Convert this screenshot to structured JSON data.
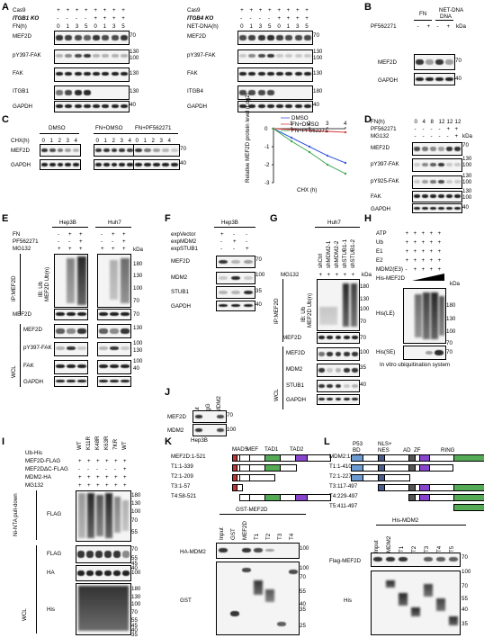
{
  "figure": {
    "panels": [
      "A",
      "B",
      "C",
      "D",
      "E",
      "F",
      "G",
      "H",
      "I",
      "J",
      "K",
      "L"
    ],
    "A": {
      "left": {
        "rows": [
          "Cas9",
          "ITGB1 KO",
          "FN(h)"
        ],
        "cas9": [
          "+",
          "+",
          "+",
          "+",
          "+",
          "+",
          "+",
          "+"
        ],
        "ko": [
          "-",
          "-",
          "-",
          "-",
          "+",
          "+",
          "+",
          "+"
        ],
        "time": [
          "0",
          "1",
          "3",
          "5",
          "0",
          "1",
          "3",
          "5"
        ],
        "blots": [
          "MEF2D",
          "pY397-FAK",
          "FAK",
          "ITGB1",
          "GAPDH"
        ],
        "kda": [
          "70",
          "130",
          "100",
          "130",
          "130",
          "40"
        ]
      },
      "right": {
        "rows": [
          "Cas9",
          "ITGB4 KO",
          "NET-DNA(h)"
        ],
        "cas9": [
          "+",
          "+",
          "+",
          "+",
          "+",
          "+",
          "+",
          "+"
        ],
        "ko": [
          "-",
          "-",
          "-",
          "-",
          "+",
          "+",
          "+",
          "+"
        ],
        "time": [
          "0",
          "1",
          "3",
          "5",
          "0",
          "1",
          "3",
          "5"
        ],
        "blots": [
          "MEF2D",
          "pY397-FAK",
          "FAK",
          "ITGB4",
          "GAPDH"
        ],
        "kda": [
          "70",
          "130",
          "100",
          "130",
          "180",
          "40"
        ]
      }
    },
    "B": {
      "groups": [
        "FN",
        "NET-DNA"
      ],
      "row": "PF562271",
      "signs": [
        "-",
        "+",
        "-",
        "+"
      ],
      "blots": [
        "MEF2D",
        "GAPDH"
      ],
      "kda": [
        "70",
        "40"
      ]
    },
    "C": {
      "conds": [
        "DMSO",
        "FN+DMSO",
        "FN+PF562271"
      ],
      "row": "CHX(h)",
      "time": [
        "0",
        "1",
        "2",
        "3",
        "4"
      ],
      "blots": [
        "MEF2D",
        "GAPDH"
      ],
      "kda": [
        "70",
        "40"
      ],
      "chart_data": {
        "type": "line",
        "ylabel": "Relative MEF2D protein level (Log2)",
        "xlabel": "CHX (h)",
        "x": [
          0,
          1,
          2,
          3,
          4
        ],
        "ylim": [
          -3,
          0
        ],
        "ticks_y": [
          "0",
          "-1",
          "-2",
          "-3"
        ],
        "ticks_x": [
          "1",
          "2",
          "3",
          "4"
        ],
        "series": [
          {
            "name": "DMSO",
            "color": "#3a5bd9",
            "values": [
              0,
              -0.5,
              -1.0,
              -1.5,
              -1.9
            ]
          },
          {
            "name": "FN+DMSO",
            "color": "#d93a3a",
            "values": [
              0,
              -0.05,
              -0.1,
              -0.15,
              -0.2
            ]
          },
          {
            "name": "FN+PF562271",
            "color": "#3aa84a",
            "values": [
              0,
              -0.7,
              -1.3,
              -2.0,
              -2.5
            ]
          }
        ]
      }
    },
    "D": {
      "rows": [
        "FN(h)",
        "PF562271",
        "MG132"
      ],
      "time": [
        "0",
        "4",
        "8",
        "12",
        "12",
        "12"
      ],
      "pf": [
        "-",
        "-",
        "-",
        "-",
        "+",
        "+"
      ],
      "mg": [
        "-",
        "-",
        "-",
        "-",
        "-",
        "+"
      ],
      "blots": [
        "MEF2D",
        "pY397-FAK",
        "pY925-FAK",
        "FAK",
        "GAPDH"
      ],
      "kda": [
        "70",
        "130",
        "100",
        "130",
        "100",
        "130",
        "100",
        "40"
      ]
    },
    "E": {
      "cells": [
        "Hep3B",
        "Huh7"
      ],
      "rows": [
        "FN",
        "PF562271",
        "MG132"
      ],
      "fn": [
        "-",
        "+",
        "+",
        "-",
        "+",
        "+"
      ],
      "pf": [
        "-",
        "-",
        "+",
        "-",
        "-",
        "+"
      ],
      "mg": [
        "+",
        "+",
        "+",
        "+",
        "+",
        "+"
      ],
      "ip": "IP:MEF2D",
      "ib": "IB: Ub",
      "ibsub": "MEF2D Ub(n)",
      "wcl": "WCL",
      "blots": [
        "MEF2D",
        "MEF2D",
        "pY397-FAK",
        "FAK",
        "GAPDH"
      ],
      "kda": [
        "kDa",
        "180",
        "130",
        "100",
        "70",
        "70",
        "130",
        "100",
        "130",
        "100",
        "40"
      ]
    },
    "F": {
      "cell": "Hep3B",
      "rows": [
        "expVector",
        "expMDM2",
        "expSTUB1"
      ],
      "vec": [
        "+",
        "-",
        "-"
      ],
      "mdm": [
        "-",
        "+",
        "-"
      ],
      "stub": [
        "-",
        "-",
        "+"
      ],
      "blots": [
        "MEF2D",
        "MDM2",
        "STUB1",
        "GAPDH"
      ],
      "kda": [
        "70",
        "100",
        "35",
        "40"
      ]
    },
    "G": {
      "cell": "Huh7",
      "cols": [
        "shCtrl",
        "shMDM2-1",
        "shMDM2-2",
        "shSTUB1-1",
        "shSTUB1-2"
      ],
      "row": "MG132",
      "mg": [
        "+",
        "+",
        "+",
        "+",
        "+"
      ],
      "ip": "IP:MEF2D",
      "ib": "IB: Ub",
      "ibsub": "MEF2D Ub(n)",
      "wcl": "WCL",
      "blots": [
        "MEF2D",
        "MEF2D",
        "MDM2",
        "STUB1",
        "GAPDH"
      ],
      "kda": [
        "kDa",
        "180",
        "130",
        "100",
        "70",
        "70",
        "100",
        "35",
        "40"
      ]
    },
    "H": {
      "rows": [
        "ATP",
        "Ub",
        "E1",
        "E2",
        "MDM2(E3)",
        "His-MEF2D"
      ],
      "signs": [
        "+",
        "+",
        "+",
        "+",
        "+"
      ],
      "mdm": [
        "-",
        "+",
        "+",
        "+",
        "+"
      ],
      "blots": [
        "His(LE)",
        "His(SE)"
      ],
      "kda": [
        "kDa",
        "180",
        "130",
        "100",
        "70",
        "70"
      ],
      "caption": "In vitro ubiquitination system"
    },
    "I": {
      "rows": [
        "Ub-His",
        "MEF2D-FLAG",
        "MEF2DΔC-FLAG",
        "MDM2-HA",
        "MG132"
      ],
      "ub": [
        "WT",
        "K11R",
        "K48R",
        "K63R",
        "7KR",
        "WT"
      ],
      "pull": "Ni-NTA pull-down",
      "wcl": "WCL",
      "blots": [
        "FLAG",
        "FLAG",
        "HA",
        "His"
      ],
      "kda": [
        "180",
        "130",
        "100",
        "70",
        "55",
        "70",
        "55",
        "45",
        "40",
        "100",
        "180",
        "130",
        "100",
        "70",
        "55",
        "45",
        "40",
        "35"
      ]
    },
    "J": {
      "cols": [
        "Input",
        "IP:IgG",
        "IP:MDM2"
      ],
      "blots": [
        "MEF2D",
        "MDM2"
      ],
      "kda": [
        "70",
        "100"
      ],
      "cell": "Hep3B"
    },
    "K": {
      "domains": [
        "MADS",
        "MEF",
        "TAD1",
        "TAD2"
      ],
      "constructs": [
        "MEF2D:1-521",
        "T1:1-339",
        "T2:1-209",
        "T3:1-57",
        "T4:58-521"
      ],
      "title": "GST-MEF2D",
      "cols": [
        "Input",
        "GST",
        "MEF2D",
        "T1",
        "T2",
        "T3",
        "T4"
      ],
      "blots": [
        "HA-MDM2",
        "GST"
      ],
      "kda": [
        "100",
        "100",
        "70",
        "55",
        "40",
        "35",
        "25"
      ]
    },
    "L": {
      "domains": [
        "P53 BD",
        "NLS+ NES",
        "AD",
        "ZF",
        "RING"
      ],
      "constructs": [
        "MDM2:1-497",
        "T1:1-410",
        "T2:1-227",
        "T3:117-497",
        "T4:229-497",
        "T5:411-497"
      ],
      "title": "His-MDM2",
      "cols": [
        "Input",
        "MDM2",
        "T1",
        "T2",
        "T3",
        "T4",
        "T5"
      ],
      "blots": [
        "Flag-MEF2D",
        "His"
      ],
      "kda": [
        "70",
        "100",
        "70",
        "55",
        "40",
        "35"
      ]
    }
  }
}
